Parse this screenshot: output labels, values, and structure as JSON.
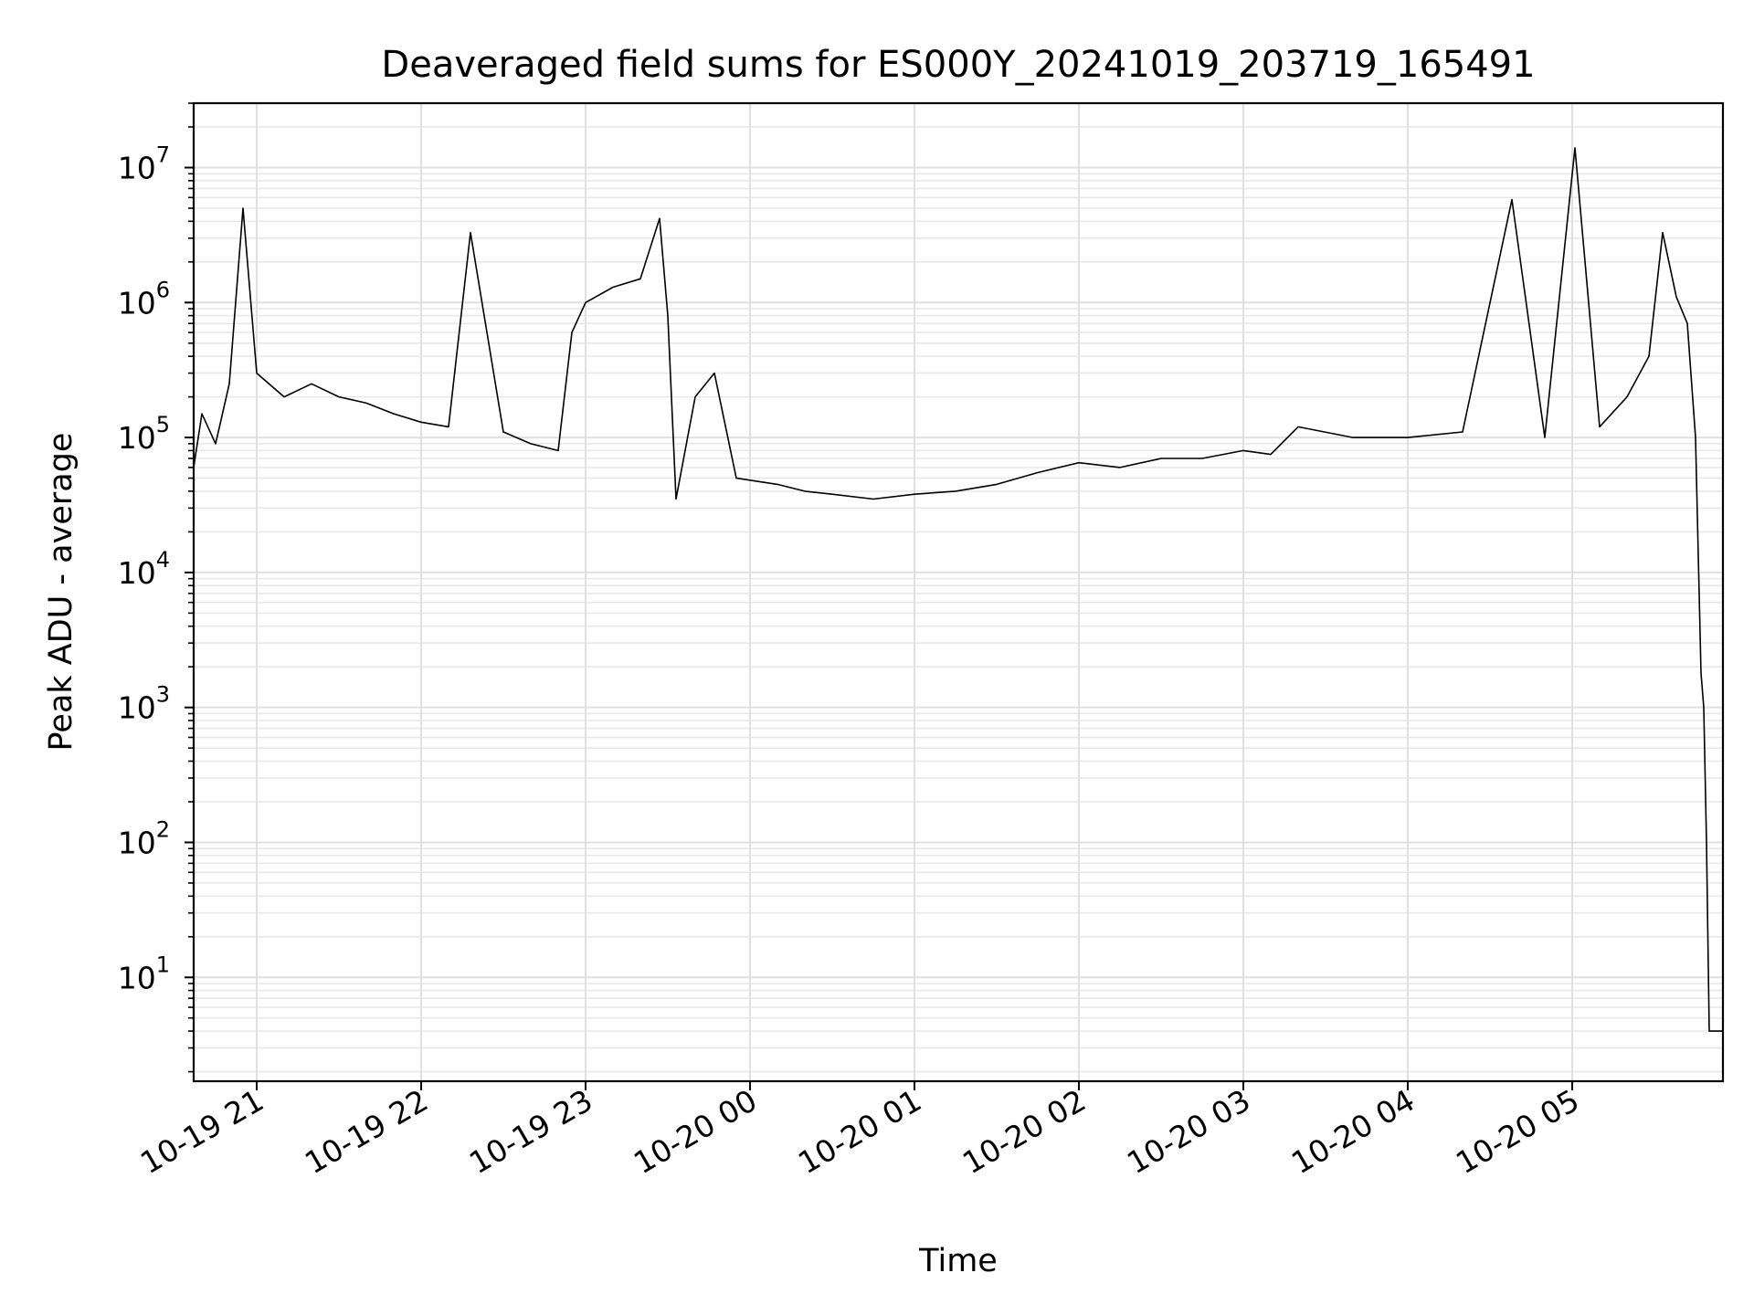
{
  "chart_data": {
    "type": "line",
    "title": "Deaveraged field sums for ES000Y_20241019_203719_165491",
    "xlabel": "Time",
    "ylabel": "Peak ADU - average",
    "yscale": "log",
    "ylim": [
      1.7,
      30000000
    ],
    "xlim": [
      "2024-10-19 20:37",
      "2024-10-20 05:55"
    ],
    "grid": true,
    "legend": "none",
    "line_color": "#000000",
    "x_ticks": [
      {
        "t": "2024-10-19 21:00",
        "label": "10-19 21"
      },
      {
        "t": "2024-10-19 22:00",
        "label": "10-19 22"
      },
      {
        "t": "2024-10-19 23:00",
        "label": "10-19 23"
      },
      {
        "t": "2024-10-20 00:00",
        "label": "10-20 00"
      },
      {
        "t": "2024-10-20 01:00",
        "label": "10-20 01"
      },
      {
        "t": "2024-10-20 02:00",
        "label": "10-20 02"
      },
      {
        "t": "2024-10-20 03:00",
        "label": "10-20 03"
      },
      {
        "t": "2024-10-20 04:00",
        "label": "10-20 04"
      },
      {
        "t": "2024-10-20 05:00",
        "label": "10-20 05"
      }
    ],
    "y_ticks": [
      {
        "v": 10,
        "base": "10",
        "exp": "1"
      },
      {
        "v": 100,
        "base": "10",
        "exp": "2"
      },
      {
        "v": 1000,
        "base": "10",
        "exp": "3"
      },
      {
        "v": 10000,
        "base": "10",
        "exp": "4"
      },
      {
        "v": 100000,
        "base": "10",
        "exp": "5"
      },
      {
        "v": 1000000,
        "base": "10",
        "exp": "6"
      },
      {
        "v": 10000000,
        "base": "10",
        "exp": "7"
      }
    ],
    "series": [
      {
        "points": [
          [
            "2024-10-19 20:37",
            60000
          ],
          [
            "2024-10-19 20:40",
            150000
          ],
          [
            "2024-10-19 20:45",
            90000
          ],
          [
            "2024-10-19 20:50",
            250000
          ],
          [
            "2024-10-19 20:55",
            5000000
          ],
          [
            "2024-10-19 21:00",
            300000
          ],
          [
            "2024-10-19 21:10",
            200000
          ],
          [
            "2024-10-19 21:20",
            250000
          ],
          [
            "2024-10-19 21:30",
            200000
          ],
          [
            "2024-10-19 21:40",
            180000
          ],
          [
            "2024-10-19 21:50",
            150000
          ],
          [
            "2024-10-19 22:00",
            130000
          ],
          [
            "2024-10-19 22:10",
            120000
          ],
          [
            "2024-10-19 22:18",
            3300000
          ],
          [
            "2024-10-19 22:30",
            110000
          ],
          [
            "2024-10-19 22:40",
            90000
          ],
          [
            "2024-10-19 22:50",
            80000
          ],
          [
            "2024-10-19 22:55",
            600000
          ],
          [
            "2024-10-19 23:00",
            1000000
          ],
          [
            "2024-10-19 23:10",
            1300000
          ],
          [
            "2024-10-19 23:20",
            1500000
          ],
          [
            "2024-10-19 23:27",
            4200000
          ],
          [
            "2024-10-19 23:30",
            800000
          ],
          [
            "2024-10-19 23:33",
            35000
          ],
          [
            "2024-10-19 23:40",
            200000
          ],
          [
            "2024-10-19 23:47",
            300000
          ],
          [
            "2024-10-19 23:55",
            50000
          ],
          [
            "2024-10-20 00:10",
            45000
          ],
          [
            "2024-10-20 00:20",
            40000
          ],
          [
            "2024-10-20 00:30",
            38000
          ],
          [
            "2024-10-20 00:45",
            35000
          ],
          [
            "2024-10-20 01:00",
            38000
          ],
          [
            "2024-10-20 01:15",
            40000
          ],
          [
            "2024-10-20 01:30",
            45000
          ],
          [
            "2024-10-20 01:45",
            55000
          ],
          [
            "2024-10-20 02:00",
            65000
          ],
          [
            "2024-10-20 02:15",
            60000
          ],
          [
            "2024-10-20 02:30",
            70000
          ],
          [
            "2024-10-20 02:45",
            70000
          ],
          [
            "2024-10-20 03:00",
            80000
          ],
          [
            "2024-10-20 03:10",
            75000
          ],
          [
            "2024-10-20 03:20",
            120000
          ],
          [
            "2024-10-20 03:40",
            100000
          ],
          [
            "2024-10-20 04:00",
            100000
          ],
          [
            "2024-10-20 04:20",
            110000
          ],
          [
            "2024-10-20 04:38",
            5800000
          ],
          [
            "2024-10-20 04:50",
            100000
          ],
          [
            "2024-10-20 05:01",
            14000000
          ],
          [
            "2024-10-20 05:10",
            120000
          ],
          [
            "2024-10-20 05:20",
            200000
          ],
          [
            "2024-10-20 05:28",
            400000
          ],
          [
            "2024-10-20 05:33",
            3300000
          ],
          [
            "2024-10-20 05:38",
            1100000
          ],
          [
            "2024-10-20 05:42",
            700000
          ],
          [
            "2024-10-20 05:45",
            100000
          ],
          [
            "2024-10-20 05:47",
            1800
          ],
          [
            "2024-10-20 05:48",
            1000
          ],
          [
            "2024-10-20 05:49",
            100
          ],
          [
            "2024-10-20 05:50",
            4
          ],
          [
            "2024-10-20 05:55",
            4
          ]
        ]
      }
    ]
  }
}
